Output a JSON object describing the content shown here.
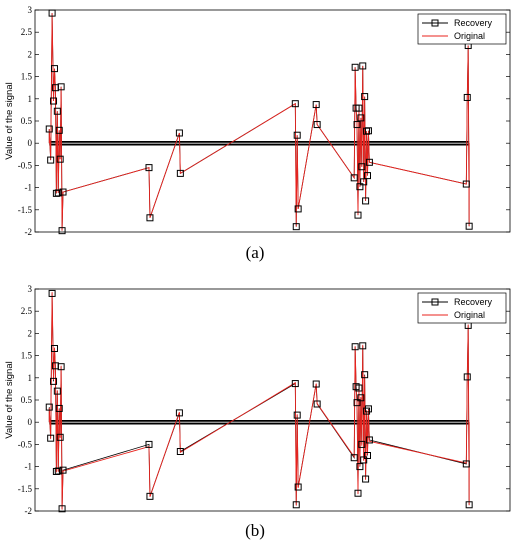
{
  "chart_data": [
    {
      "type": "line",
      "panel_label": "(a)",
      "ylabel": "Value of the signal",
      "ylim": [
        -2,
        3
      ],
      "yticks": [
        -2,
        -1.5,
        -1,
        -0.5,
        0,
        0.5,
        1,
        1.5,
        2,
        2.5,
        3
      ],
      "ytick_labels": [
        "-2",
        "-1.5",
        "-1",
        "-0.5",
        "0",
        "0.5",
        "1",
        "1.5",
        "2",
        "2.5",
        "3"
      ],
      "xlim": [
        0,
        100
      ],
      "x_ticks_shown": false,
      "legend_position": "top-right",
      "series": [
        {
          "name": "Recovery",
          "color": "#000000",
          "marker": "square",
          "points": [
            [
              3.0,
              0.32
            ],
            [
              3.3,
              -0.38
            ],
            [
              3.6,
              2.93
            ],
            [
              3.9,
              0.95
            ],
            [
              4.1,
              1.68
            ],
            [
              4.3,
              1.25
            ],
            [
              4.5,
              -1.13
            ],
            [
              4.7,
              0.72
            ],
            [
              4.9,
              -1.12
            ],
            [
              5.1,
              0.29
            ],
            [
              5.3,
              -0.36
            ],
            [
              5.5,
              1.27
            ],
            [
              5.7,
              -1.97
            ],
            [
              5.9,
              -1.1
            ],
            [
              24.0,
              -0.55
            ],
            [
              24.2,
              -1.68
            ],
            [
              30.4,
              0.23
            ],
            [
              30.6,
              -0.68
            ],
            [
              54.8,
              0.89
            ],
            [
              55.0,
              -1.88
            ],
            [
              55.2,
              0.18
            ],
            [
              55.4,
              -1.48
            ],
            [
              59.2,
              0.87
            ],
            [
              59.4,
              0.42
            ],
            [
              67.2,
              -0.78
            ],
            [
              67.4,
              1.71
            ],
            [
              67.6,
              0.79
            ],
            [
              67.8,
              0.42
            ],
            [
              68.0,
              -1.62
            ],
            [
              68.2,
              0.79
            ],
            [
              68.4,
              -0.98
            ],
            [
              68.6,
              0.57
            ],
            [
              68.8,
              -0.53
            ],
            [
              69.0,
              1.74
            ],
            [
              69.2,
              -0.87
            ],
            [
              69.4,
              1.05
            ],
            [
              69.6,
              -1.3
            ],
            [
              69.8,
              0.27
            ],
            [
              70.0,
              -0.73
            ],
            [
              70.2,
              0.28
            ],
            [
              70.4,
              -0.43
            ],
            [
              90.8,
              -0.92
            ],
            [
              91.0,
              1.03
            ],
            [
              91.2,
              2.2
            ],
            [
              91.4,
              -1.87
            ]
          ]
        },
        {
          "name": "Original",
          "color": "#e8231e",
          "marker": "none",
          "points": [
            [
              3.0,
              0.32
            ],
            [
              3.3,
              -0.38
            ],
            [
              3.6,
              2.93
            ],
            [
              3.9,
              0.95
            ],
            [
              4.1,
              1.68
            ],
            [
              4.3,
              1.25
            ],
            [
              4.5,
              -1.13
            ],
            [
              4.7,
              0.72
            ],
            [
              4.9,
              -1.12
            ],
            [
              5.1,
              0.29
            ],
            [
              5.3,
              -0.36
            ],
            [
              5.5,
              1.27
            ],
            [
              5.7,
              -1.97
            ],
            [
              5.9,
              -1.1
            ],
            [
              24.0,
              -0.55
            ],
            [
              24.2,
              -1.68
            ],
            [
              30.4,
              0.23
            ],
            [
              30.6,
              -0.68
            ],
            [
              54.8,
              0.89
            ],
            [
              55.0,
              -1.88
            ],
            [
              55.2,
              0.18
            ],
            [
              55.4,
              -1.48
            ],
            [
              59.2,
              0.87
            ],
            [
              59.4,
              0.42
            ],
            [
              67.2,
              -0.78
            ],
            [
              67.4,
              1.71
            ],
            [
              67.6,
              0.79
            ],
            [
              67.8,
              0.42
            ],
            [
              68.0,
              -1.62
            ],
            [
              68.2,
              0.79
            ],
            [
              68.4,
              -0.98
            ],
            [
              68.6,
              0.57
            ],
            [
              68.8,
              -0.53
            ],
            [
              69.0,
              1.74
            ],
            [
              69.2,
              -0.87
            ],
            [
              69.4,
              1.05
            ],
            [
              69.6,
              -1.3
            ],
            [
              69.8,
              0.27
            ],
            [
              70.0,
              -0.73
            ],
            [
              70.2,
              0.28
            ],
            [
              70.4,
              -0.43
            ],
            [
              90.8,
              -0.92
            ],
            [
              91.0,
              1.03
            ],
            [
              91.2,
              2.2
            ],
            [
              91.4,
              -1.87
            ]
          ]
        }
      ]
    },
    {
      "type": "line",
      "panel_label": "(b)",
      "ylabel": "Value of the signal",
      "ylim": [
        -2,
        3
      ],
      "yticks": [
        -2,
        -1.5,
        -1,
        -0.5,
        0,
        0.5,
        1,
        1.5,
        2,
        2.5,
        3
      ],
      "ytick_labels": [
        "-2",
        "-1.5",
        "-1",
        "-0.5",
        "0",
        "0.5",
        "1",
        "1.5",
        "2",
        "2.5",
        "3"
      ],
      "xlim": [
        0,
        100
      ],
      "x_ticks_shown": false,
      "legend_position": "top-right",
      "series": [
        {
          "name": "Recovery",
          "color": "#000000",
          "marker": "square",
          "points": [
            [
              3.0,
              0.34
            ],
            [
              3.3,
              -0.36
            ],
            [
              3.6,
              2.9
            ],
            [
              3.9,
              0.92
            ],
            [
              4.1,
              1.66
            ],
            [
              4.3,
              1.27
            ],
            [
              4.5,
              -1.11
            ],
            [
              4.7,
              0.7
            ],
            [
              4.9,
              -1.1
            ],
            [
              5.1,
              0.31
            ],
            [
              5.3,
              -0.34
            ],
            [
              5.5,
              1.25
            ],
            [
              5.7,
              -1.95
            ],
            [
              5.9,
              -1.08
            ],
            [
              24.0,
              -0.5
            ],
            [
              24.2,
              -1.67
            ],
            [
              30.4,
              0.21
            ],
            [
              30.6,
              -0.66
            ],
            [
              54.8,
              0.87
            ],
            [
              55.0,
              -1.86
            ],
            [
              55.2,
              0.16
            ],
            [
              55.4,
              -1.46
            ],
            [
              59.2,
              0.86
            ],
            [
              59.4,
              0.41
            ],
            [
              67.2,
              -0.8
            ],
            [
              67.4,
              1.7
            ],
            [
              67.6,
              0.8
            ],
            [
              67.8,
              0.44
            ],
            [
              68.0,
              -1.6
            ],
            [
              68.2,
              0.77
            ],
            [
              68.4,
              -1.0
            ],
            [
              68.6,
              0.55
            ],
            [
              68.8,
              -0.5
            ],
            [
              69.0,
              1.72
            ],
            [
              69.2,
              -0.85
            ],
            [
              69.4,
              1.07
            ],
            [
              69.6,
              -1.28
            ],
            [
              69.8,
              0.25
            ],
            [
              70.0,
              -0.75
            ],
            [
              70.2,
              0.3
            ],
            [
              70.4,
              -0.4
            ],
            [
              90.8,
              -0.94
            ],
            [
              91.0,
              1.02
            ],
            [
              91.2,
              2.18
            ],
            [
              91.4,
              -1.86
            ]
          ]
        },
        {
          "name": "Original",
          "color": "#e8231e",
          "marker": "none",
          "points": [
            [
              3.0,
              0.32
            ],
            [
              3.3,
              -0.38
            ],
            [
              3.6,
              2.93
            ],
            [
              3.9,
              0.95
            ],
            [
              4.1,
              1.68
            ],
            [
              4.3,
              1.25
            ],
            [
              4.5,
              -1.13
            ],
            [
              4.7,
              0.72
            ],
            [
              4.9,
              -1.12
            ],
            [
              5.1,
              0.29
            ],
            [
              5.3,
              -0.36
            ],
            [
              5.5,
              1.27
            ],
            [
              5.7,
              -1.97
            ],
            [
              5.9,
              -1.1
            ],
            [
              24.0,
              -0.55
            ],
            [
              24.2,
              -1.68
            ],
            [
              30.4,
              0.23
            ],
            [
              30.6,
              -0.68
            ],
            [
              54.8,
              0.89
            ],
            [
              55.0,
              -1.88
            ],
            [
              55.2,
              0.18
            ],
            [
              55.4,
              -1.48
            ],
            [
              59.2,
              0.87
            ],
            [
              59.4,
              0.42
            ],
            [
              67.2,
              -0.78
            ],
            [
              67.4,
              1.71
            ],
            [
              67.6,
              0.79
            ],
            [
              67.8,
              0.42
            ],
            [
              68.0,
              -1.62
            ],
            [
              68.2,
              0.79
            ],
            [
              68.4,
              -0.98
            ],
            [
              68.6,
              0.57
            ],
            [
              68.8,
              -0.53
            ],
            [
              69.0,
              1.74
            ],
            [
              69.2,
              -0.87
            ],
            [
              69.4,
              1.05
            ],
            [
              69.6,
              -1.3
            ],
            [
              69.8,
              0.27
            ],
            [
              70.0,
              -0.73
            ],
            [
              70.2,
              0.28
            ],
            [
              70.4,
              -0.43
            ],
            [
              90.8,
              -0.92
            ],
            [
              91.0,
              1.03
            ],
            [
              91.2,
              2.2
            ],
            [
              91.4,
              -1.87
            ]
          ]
        }
      ]
    }
  ]
}
